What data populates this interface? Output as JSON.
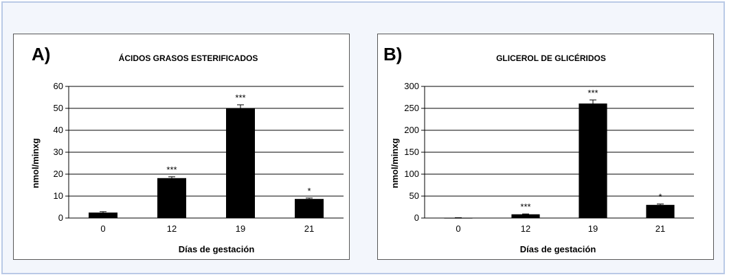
{
  "chart_data": [
    {
      "panel_label": "A)",
      "type": "bar",
      "title": "ÁCIDOS GRASOS ESTERIFICADOS",
      "xlabel": "Días de gestación",
      "ylabel": "nmol/minxg",
      "categories": [
        "0",
        "12",
        "19",
        "21"
      ],
      "values": [
        2.5,
        18.2,
        50.0,
        8.7
      ],
      "errors": [
        0.4,
        0.6,
        1.6,
        0.4
      ],
      "significance": [
        "",
        "***",
        "***",
        "*"
      ],
      "ylim": [
        0,
        60
      ],
      "yticks": [
        0,
        10,
        20,
        30,
        40,
        50,
        60
      ],
      "grid": true,
      "bar_color": "#000000"
    },
    {
      "panel_label": "B)",
      "type": "bar",
      "title": "GLICEROL DE GLICÉRIDOS",
      "xlabel": "Días de gestación",
      "ylabel": "nmol/minxg",
      "categories": [
        "0",
        "12",
        "19",
        "21"
      ],
      "values": [
        0.5,
        8.5,
        261,
        30
      ],
      "errors": [
        0.3,
        0.8,
        8,
        2
      ],
      "significance": [
        "",
        "***",
        "***",
        "*"
      ],
      "ylim": [
        0,
        300
      ],
      "yticks": [
        0,
        50,
        100,
        150,
        200,
        250,
        300
      ],
      "grid": true,
      "bar_color": "#000000"
    }
  ]
}
